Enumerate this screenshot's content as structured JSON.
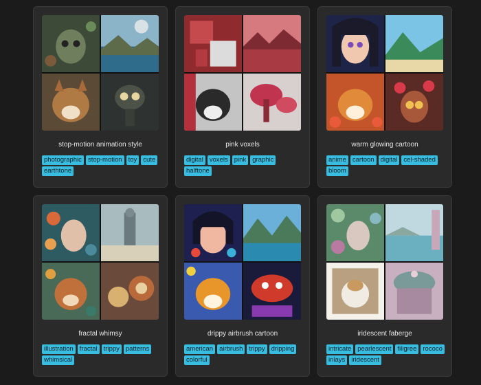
{
  "gallery": {
    "cards": [
      {
        "title": "stop-motion animation style",
        "tags": [
          "photographic",
          "stop-motion",
          "toy",
          "cute",
          "earthtone"
        ],
        "palette": [
          "#4a5a44",
          "#3d6e86",
          "#a66a3a",
          "#3e3a2e"
        ]
      },
      {
        "title": "pink voxels",
        "tags": [
          "digital",
          "voxels",
          "pink",
          "graphic",
          "halftone"
        ],
        "palette": [
          "#b13a3e",
          "#c76b70",
          "#d4d4d4",
          "#b8304a"
        ]
      },
      {
        "title": "warm glowing cartoon",
        "tags": [
          "anime",
          "cartoon",
          "digital",
          "cel-shaded",
          "bloom"
        ],
        "palette": [
          "#2a3560",
          "#4fa2c8",
          "#d2672a",
          "#7a3a2a"
        ]
      },
      {
        "title": "fractal whimsy",
        "tags": [
          "illustration",
          "fractal",
          "trippy",
          "patterns",
          "whimsical"
        ],
        "palette": [
          "#3e6a72",
          "#8aa3a8",
          "#b6652e",
          "#a0783e"
        ]
      },
      {
        "title": "drippy airbrush cartoon",
        "tags": [
          "american",
          "airbrush",
          "trippy",
          "dripping",
          "colorful"
        ],
        "palette": [
          "#2a2f6a",
          "#3e8ab8",
          "#e19b2a",
          "#c23a2a"
        ]
      },
      {
        "title": "iridescent faberge",
        "tags": [
          "intricate",
          "pearlescent",
          "filigree",
          "rococo",
          "inlays",
          "iridescent"
        ],
        "palette": [
          "#5e8a6a",
          "#7ab6b8",
          "#d8ccb8",
          "#b49aa6"
        ]
      }
    ]
  }
}
